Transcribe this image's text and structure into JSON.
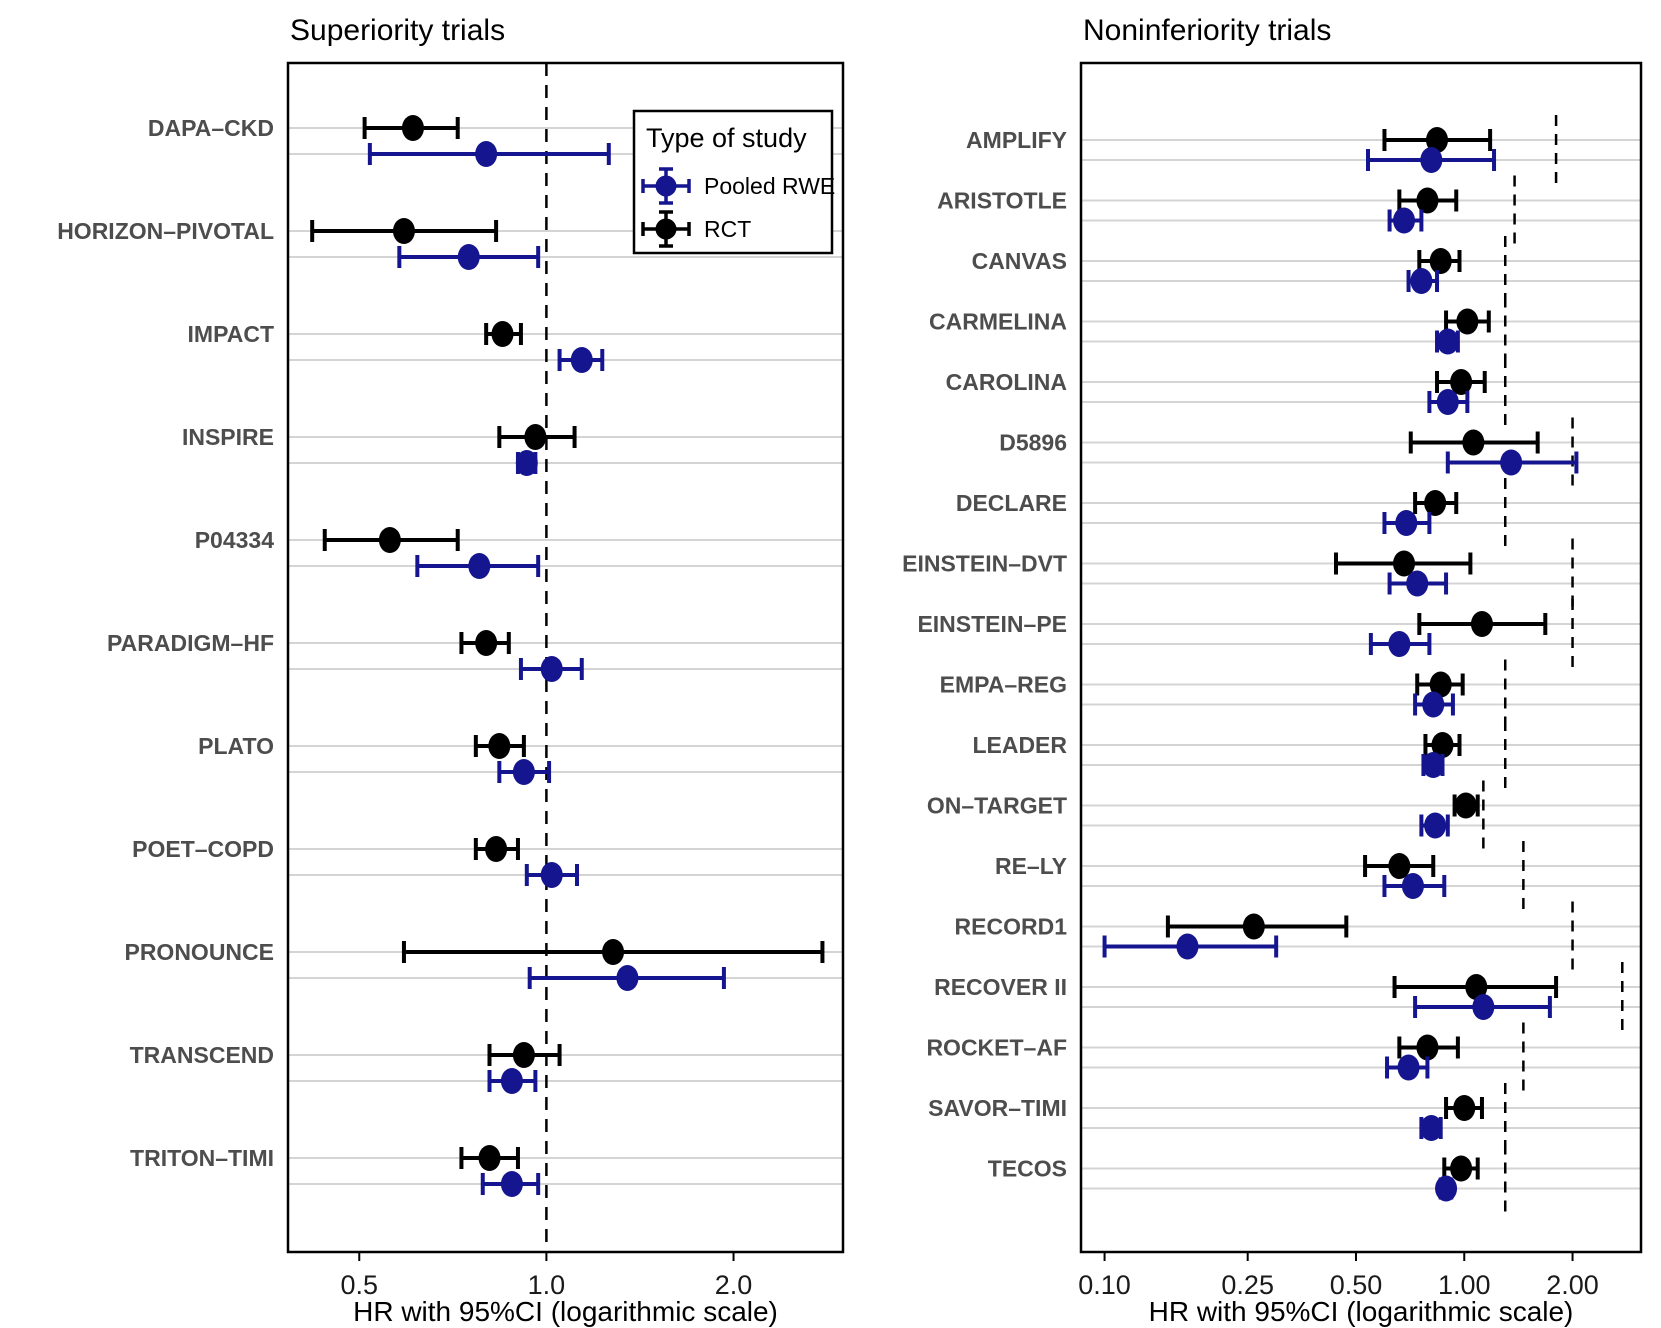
{
  "colors": {
    "rwe_blue": "#15158f",
    "rct_black": "#000000",
    "gridline": "#d4d4d4",
    "trial_label": "#4d4d4d",
    "panel_border": "#000000"
  },
  "legend": {
    "title": "Type of study",
    "items": [
      {
        "label": "Pooled RWE",
        "color_key": "rwe_blue"
      },
      {
        "label": "RCT",
        "color_key": "rct_black"
      }
    ]
  },
  "chart_data": [
    {
      "type": "forest",
      "title": "Superiority trials",
      "xlabel": "HR with 95%CI (logarithmic scale)",
      "xscale": "log",
      "xlim": [
        0.384,
        3.0
      ],
      "xticks": [
        0.5,
        1.0,
        2.0
      ],
      "xtick_labels": [
        "0.5",
        "1.0",
        "2.0"
      ],
      "reference_line": 1.0,
      "grid": "horizontal-rows",
      "legend_position": "top-right-inside",
      "series": [
        "RCT",
        "Pooled RWE"
      ],
      "trials": [
        {
          "name": "DAPA–CKD",
          "rct": {
            "hr": 0.61,
            "lo": 0.51,
            "hi": 0.72
          },
          "rwe": {
            "hr": 0.8,
            "lo": 0.52,
            "hi": 1.26
          }
        },
        {
          "name": "HORIZON–PIVOTAL",
          "rct": {
            "hr": 0.59,
            "lo": 0.42,
            "hi": 0.83
          },
          "rwe": {
            "hr": 0.75,
            "lo": 0.58,
            "hi": 0.97
          }
        },
        {
          "name": "IMPACT",
          "rct": {
            "hr": 0.85,
            "lo": 0.8,
            "hi": 0.91
          },
          "rwe": {
            "hr": 1.14,
            "lo": 1.05,
            "hi": 1.23
          }
        },
        {
          "name": "INSPIRE",
          "rct": {
            "hr": 0.96,
            "lo": 0.84,
            "hi": 1.11
          },
          "rwe": {
            "hr": 0.93,
            "lo": 0.9,
            "hi": 0.96
          }
        },
        {
          "name": "P04334",
          "rct": {
            "hr": 0.56,
            "lo": 0.44,
            "hi": 0.72
          },
          "rwe": {
            "hr": 0.78,
            "lo": 0.62,
            "hi": 0.97
          }
        },
        {
          "name": "PARADIGM–HF",
          "rct": {
            "hr": 0.8,
            "lo": 0.73,
            "hi": 0.87
          },
          "rwe": {
            "hr": 1.02,
            "lo": 0.91,
            "hi": 1.14
          }
        },
        {
          "name": "PLATO",
          "rct": {
            "hr": 0.84,
            "lo": 0.77,
            "hi": 0.92
          },
          "rwe": {
            "hr": 0.92,
            "lo": 0.84,
            "hi": 1.01
          }
        },
        {
          "name": "POET–COPD",
          "rct": {
            "hr": 0.83,
            "lo": 0.77,
            "hi": 0.9
          },
          "rwe": {
            "hr": 1.02,
            "lo": 0.93,
            "hi": 1.12
          }
        },
        {
          "name": "PRONOUNCE",
          "rct": {
            "hr": 1.28,
            "lo": 0.59,
            "hi": 2.78
          },
          "rwe": {
            "hr": 1.35,
            "lo": 0.94,
            "hi": 1.93
          }
        },
        {
          "name": "TRANSCEND",
          "rct": {
            "hr": 0.92,
            "lo": 0.81,
            "hi": 1.05
          },
          "rwe": {
            "hr": 0.88,
            "lo": 0.81,
            "hi": 0.96
          }
        },
        {
          "name": "TRITON–TIMI",
          "rct": {
            "hr": 0.81,
            "lo": 0.73,
            "hi": 0.9
          },
          "rwe": {
            "hr": 0.88,
            "lo": 0.79,
            "hi": 0.97
          }
        }
      ]
    },
    {
      "type": "forest",
      "title": "Noninferiority trials",
      "xlabel": "HR with 95%CI (logarithmic scale)",
      "xscale": "log",
      "xlim": [
        0.086,
        3.1
      ],
      "xticks": [
        0.1,
        0.25,
        0.5,
        1.0,
        2.0
      ],
      "xtick_labels": [
        "0.10",
        "0.25",
        "0.50",
        "1.00",
        "2.00"
      ],
      "grid": "horizontal-rows",
      "series": [
        "RCT",
        "Pooled RWE"
      ],
      "trials": [
        {
          "name": "AMPLIFY",
          "rct": {
            "hr": 0.84,
            "lo": 0.6,
            "hi": 1.18
          },
          "rwe": {
            "hr": 0.81,
            "lo": 0.54,
            "hi": 1.21
          },
          "ni_margin": 1.8
        },
        {
          "name": "ARISTOTLE",
          "rct": {
            "hr": 0.79,
            "lo": 0.66,
            "hi": 0.95
          },
          "rwe": {
            "hr": 0.68,
            "lo": 0.62,
            "hi": 0.76
          },
          "ni_margin": 1.38
        },
        {
          "name": "CANVAS",
          "rct": {
            "hr": 0.86,
            "lo": 0.75,
            "hi": 0.97
          },
          "rwe": {
            "hr": 0.76,
            "lo": 0.7,
            "hi": 0.84
          },
          "ni_margin": 1.3
        },
        {
          "name": "CARMELINA",
          "rct": {
            "hr": 1.02,
            "lo": 0.89,
            "hi": 1.17
          },
          "rwe": {
            "hr": 0.9,
            "lo": 0.84,
            "hi": 0.96
          },
          "ni_margin": 1.3
        },
        {
          "name": "CAROLINA",
          "rct": {
            "hr": 0.98,
            "lo": 0.84,
            "hi": 1.14
          },
          "rwe": {
            "hr": 0.9,
            "lo": 0.8,
            "hi": 1.02
          },
          "ni_margin": 1.3
        },
        {
          "name": "D5896",
          "rct": {
            "hr": 1.06,
            "lo": 0.71,
            "hi": 1.6
          },
          "rwe": {
            "hr": 1.35,
            "lo": 0.9,
            "hi": 2.05
          },
          "ni_margin": 2.0
        },
        {
          "name": "DECLARE",
          "rct": {
            "hr": 0.83,
            "lo": 0.73,
            "hi": 0.95
          },
          "rwe": {
            "hr": 0.69,
            "lo": 0.6,
            "hi": 0.8
          },
          "ni_margin": 1.3
        },
        {
          "name": "EINSTEIN–DVT",
          "rct": {
            "hr": 0.68,
            "lo": 0.44,
            "hi": 1.04
          },
          "rwe": {
            "hr": 0.74,
            "lo": 0.62,
            "hi": 0.89
          },
          "ni_margin": 2.0
        },
        {
          "name": "EINSTEIN–PE",
          "rct": {
            "hr": 1.12,
            "lo": 0.75,
            "hi": 1.68
          },
          "rwe": {
            "hr": 0.66,
            "lo": 0.55,
            "hi": 0.8
          },
          "ni_margin": 2.0
        },
        {
          "name": "EMPA–REG",
          "rct": {
            "hr": 0.86,
            "lo": 0.74,
            "hi": 0.99
          },
          "rwe": {
            "hr": 0.82,
            "lo": 0.73,
            "hi": 0.93
          },
          "ni_margin": 1.3
        },
        {
          "name": "LEADER",
          "rct": {
            "hr": 0.87,
            "lo": 0.78,
            "hi": 0.97
          },
          "rwe": {
            "hr": 0.82,
            "lo": 0.77,
            "hi": 0.87
          },
          "ni_margin": 1.3
        },
        {
          "name": "ON–TARGET",
          "rct": {
            "hr": 1.01,
            "lo": 0.94,
            "hi": 1.09
          },
          "rwe": {
            "hr": 0.83,
            "lo": 0.76,
            "hi": 0.9
          },
          "ni_margin": 1.13
        },
        {
          "name": "RE–LY",
          "rct": {
            "hr": 0.66,
            "lo": 0.53,
            "hi": 0.82
          },
          "rwe": {
            "hr": 0.72,
            "lo": 0.6,
            "hi": 0.88
          },
          "ni_margin": 1.46
        },
        {
          "name": "RECORD1",
          "rct": {
            "hr": 0.26,
            "lo": 0.15,
            "hi": 0.47
          },
          "rwe": {
            "hr": 0.17,
            "lo": 0.1,
            "hi": 0.3
          },
          "ni_margin": 2.0
        },
        {
          "name": "RECOVER II",
          "rct": {
            "hr": 1.08,
            "lo": 0.64,
            "hi": 1.8
          },
          "rwe": {
            "hr": 1.13,
            "lo": 0.73,
            "hi": 1.73
          },
          "ni_margin": 2.75
        },
        {
          "name": "ROCKET–AF",
          "rct": {
            "hr": 0.79,
            "lo": 0.66,
            "hi": 0.96
          },
          "rwe": {
            "hr": 0.7,
            "lo": 0.61,
            "hi": 0.79
          },
          "ni_margin": 1.46
        },
        {
          "name": "SAVOR–TIMI",
          "rct": {
            "hr": 1.0,
            "lo": 0.89,
            "hi": 1.12
          },
          "rwe": {
            "hr": 0.81,
            "lo": 0.76,
            "hi": 0.86
          },
          "ni_margin": 1.3
        },
        {
          "name": "TECOS",
          "rct": {
            "hr": 0.98,
            "lo": 0.88,
            "hi": 1.09
          },
          "rwe": {
            "hr": 0.89,
            "lo": 0.86,
            "hi": 0.92
          },
          "ni_margin": 1.3
        }
      ]
    }
  ]
}
